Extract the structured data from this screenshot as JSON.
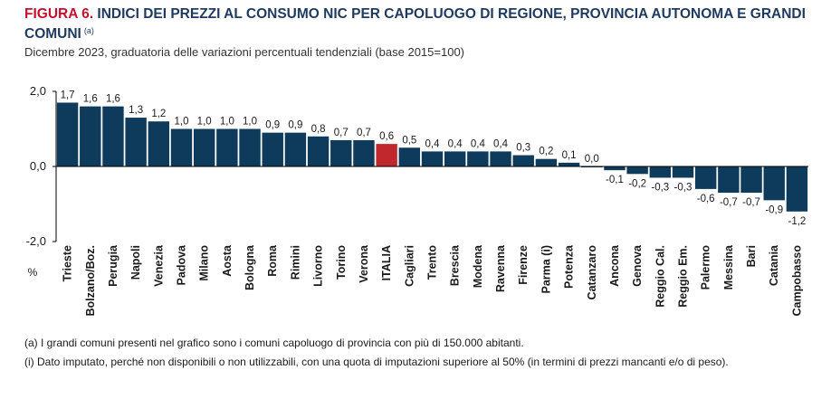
{
  "header": {
    "figure_label": "FIGURA 6.",
    "title": "INDICI DEI PREZZI AL CONSUMO NIC PER CAPOLUOGO DI REGIONE, PROVINCIA AUTONOMA E GRANDI COMUNI",
    "title_note": "(a)",
    "subtitle": "Dicembre 2023, graduatoria delle variazioni percentuali tendenziali (base 2015=100)"
  },
  "notes": [
    "(a)  I grandi comuni presenti nel grafico sono i comuni capoluogo di provincia con più di 150.000 abitanti.",
    "(i)  Dato imputato, perché non disponibili o non utilizzabili, con una quota di imputazioni superiore al 50% (in termini di prezzi mancanti e/o di peso)."
  ],
  "colors": {
    "bar": "#0e3a5c",
    "highlight": "#c0282d",
    "axis": "#000000",
    "text": "#1a1a1a"
  },
  "chart_data": {
    "type": "bar",
    "categories": [
      "Trieste",
      "Bolzano/Boz.",
      "Perugia",
      "Napoli",
      "Venezia",
      "Padova",
      "Milano",
      "Aosta",
      "Bologna",
      "Roma",
      "Rimini",
      "Livorno",
      "Torino",
      "Verona",
      "ITALIA",
      "Cagliari",
      "Trento",
      "Brescia",
      "Modena",
      "Ravenna",
      "Firenze",
      "Parma (i)",
      "Potenza",
      "Catanzaro",
      "Ancona",
      "Genova",
      "Reggio Cal.",
      "Reggio Em.",
      "Palermo",
      "Messina",
      "Bari",
      "Catania",
      "Campobasso"
    ],
    "values": [
      1.7,
      1.6,
      1.6,
      1.3,
      1.2,
      1.0,
      1.0,
      1.0,
      1.0,
      0.9,
      0.9,
      0.8,
      0.7,
      0.7,
      0.6,
      0.5,
      0.4,
      0.4,
      0.4,
      0.4,
      0.3,
      0.2,
      0.1,
      0.0,
      -0.1,
      -0.2,
      -0.3,
      -0.3,
      -0.6,
      -0.7,
      -0.7,
      -0.9,
      -1.2
    ],
    "value_labels": [
      "1,7",
      "1,6",
      "1,6",
      "1,3",
      "1,2",
      "1,0",
      "1,0",
      "1,0",
      "1,0",
      "0,9",
      "0,9",
      "0,8",
      "0,7",
      "0,7",
      "0,6",
      "0,5",
      "0,4",
      "0,4",
      "0,4",
      "0,4",
      "0,3",
      "0,2",
      "0,1",
      "0,0",
      "-0,1",
      "-0,2",
      "-0,3",
      "-0,3",
      "-0,6",
      "-0,7",
      "-0,7",
      "-0,9",
      "-1,2"
    ],
    "highlight_category": "ITALIA",
    "ylim": [
      -2.0,
      2.0
    ],
    "yticks": [
      2.0,
      0.0,
      -2.0
    ],
    "ytick_labels": [
      "2,0",
      "0,0",
      "-2,0"
    ],
    "ylabel": "%",
    "xlabel": "",
    "grid": false
  }
}
